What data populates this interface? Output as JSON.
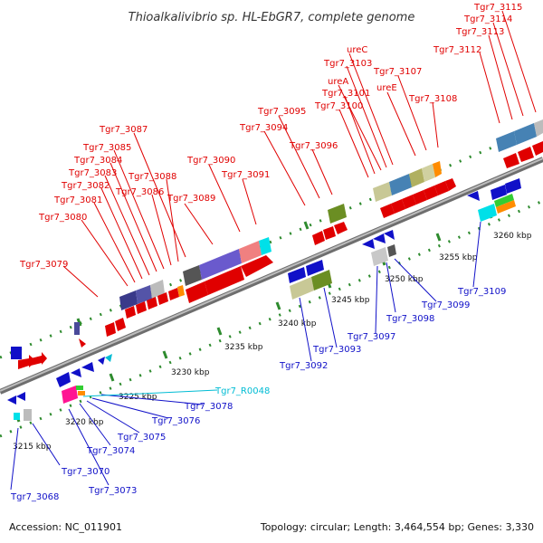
{
  "header": {
    "title": "Thioalkalivibrio sp. HL-EbGR7, complete genome"
  },
  "footer": {
    "accession": "Accession: NC_011901",
    "summary": "Topology: circular; Length: 3,464,554 bp; Genes: 3,330"
  },
  "colors": {
    "forward": "#e00000",
    "reverse": "#1010c8",
    "rna": "#00bcd4",
    "backbone": "#808080",
    "tick": "#2e8b2e"
  },
  "scale": {
    "unit": "kbp",
    "start_kbp": 3213,
    "labels": [
      {
        "text": "3215 kbp"
      },
      {
        "text": "3220 kbp"
      },
      {
        "text": "3225 kbp"
      },
      {
        "text": "3230 kbp"
      },
      {
        "text": "3235 kbp"
      },
      {
        "text": "3240 kbp"
      },
      {
        "text": "3245 kbp"
      },
      {
        "text": "3250 kbp"
      },
      {
        "text": "3255 kbp"
      },
      {
        "text": "3260 kbp"
      }
    ]
  },
  "genes_forward": [
    {
      "label": "Tgr7_3079"
    },
    {
      "label": "Tgr7_3080"
    },
    {
      "label": "Tgr7_3081"
    },
    {
      "label": "Tgr7_3082"
    },
    {
      "label": "Tgr7_3083"
    },
    {
      "label": "Tgr7_3084"
    },
    {
      "label": "Tgr7_3085"
    },
    {
      "label": "Tgr7_3087"
    },
    {
      "label": "Tgr7_3086"
    },
    {
      "label": "Tgr7_3088"
    },
    {
      "label": "Tgr7_3089"
    },
    {
      "label": "Tgr7_3090"
    },
    {
      "label": "Tgr7_3091"
    },
    {
      "label": "Tgr7_3094"
    },
    {
      "label": "Tgr7_3095"
    },
    {
      "label": "Tgr7_3096"
    },
    {
      "label": "Tgr7_3100"
    },
    {
      "label": "Tgr7_3101"
    },
    {
      "label": "ureA"
    },
    {
      "label": "Tgr7_3103"
    },
    {
      "label": "ureC"
    },
    {
      "label": "ureE"
    },
    {
      "label": "Tgr7_3107"
    },
    {
      "label": "Tgr7_3108"
    },
    {
      "label": "Tgr7_3112"
    },
    {
      "label": "Tgr7_3113"
    },
    {
      "label": "Tgr7_3114"
    },
    {
      "label": "Tgr7_3115"
    }
  ],
  "genes_reverse": [
    {
      "label": "Tgr7_3068"
    },
    {
      "label": "Tgr7_3070"
    },
    {
      "label": "Tgr7_3073"
    },
    {
      "label": "Tgr7_3074"
    },
    {
      "label": "Tgr7_3075"
    },
    {
      "label": "Tgr7_3076"
    },
    {
      "label": "Tgr7_3078"
    },
    {
      "label": "Tgr7_3092"
    },
    {
      "label": "Tgr7_3093"
    },
    {
      "label": "Tgr7_3097"
    },
    {
      "label": "Tgr7_3098"
    },
    {
      "label": "Tgr7_3099"
    },
    {
      "label": "Tgr7_3109"
    }
  ],
  "rna_genes": [
    {
      "label": "Tgr7_R0048"
    }
  ]
}
